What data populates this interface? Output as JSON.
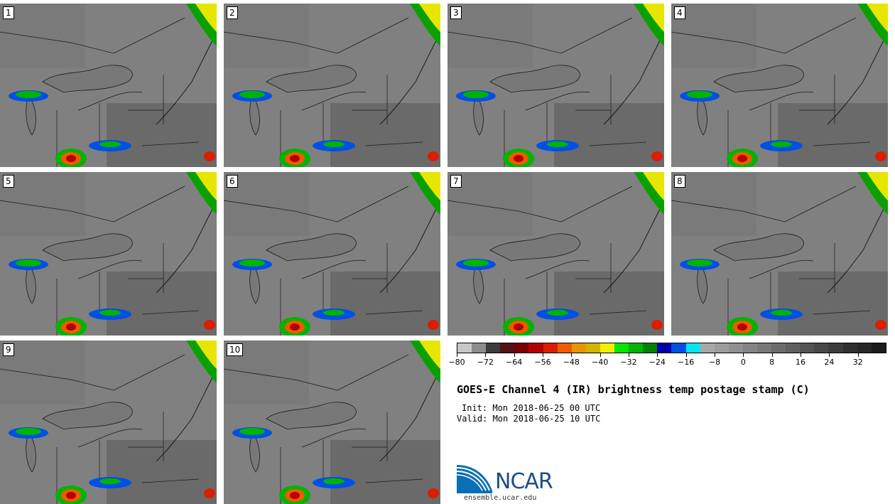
{
  "panels": [
    {
      "label": "1"
    },
    {
      "label": "2"
    },
    {
      "label": "3"
    },
    {
      "label": "4"
    },
    {
      "label": "5"
    },
    {
      "label": "6"
    },
    {
      "label": "7"
    },
    {
      "label": "8"
    },
    {
      "label": "9"
    },
    {
      "label": "10"
    }
  ],
  "colorbar": {
    "colors": [
      "#c8c8c8",
      "#8c8c8c",
      "#3c3c3c",
      "#501414",
      "#780000",
      "#b40000",
      "#dc1e00",
      "#f05a00",
      "#e69600",
      "#d2b400",
      "#f0f000",
      "#00e600",
      "#00b400",
      "#008200",
      "#0000aa",
      "#0050e6",
      "#00e6f0",
      "#a8a8a8",
      "#9c9c9c",
      "#909090",
      "#848484",
      "#787878",
      "#6c6c6c",
      "#606060",
      "#545454",
      "#484848",
      "#3c3c3c",
      "#303030",
      "#282828",
      "#1c1c1c"
    ],
    "tick_labels": [
      "−80",
      "−72",
      "−64",
      "−56",
      "−48",
      "−40",
      "−32",
      "−24",
      "−16",
      "−8",
      "0",
      "8",
      "16",
      "24",
      "32"
    ]
  },
  "title": "GOES-E Channel 4 (IR) brightness temp postage stamp (C)",
  "init": "Init: Mon 2018-06-25 00 UTC",
  "valid": "Valid: Mon 2018-06-25 10 UTC",
  "logo": {
    "text": "NCAR",
    "site": "ensemble.ucar.edu"
  }
}
